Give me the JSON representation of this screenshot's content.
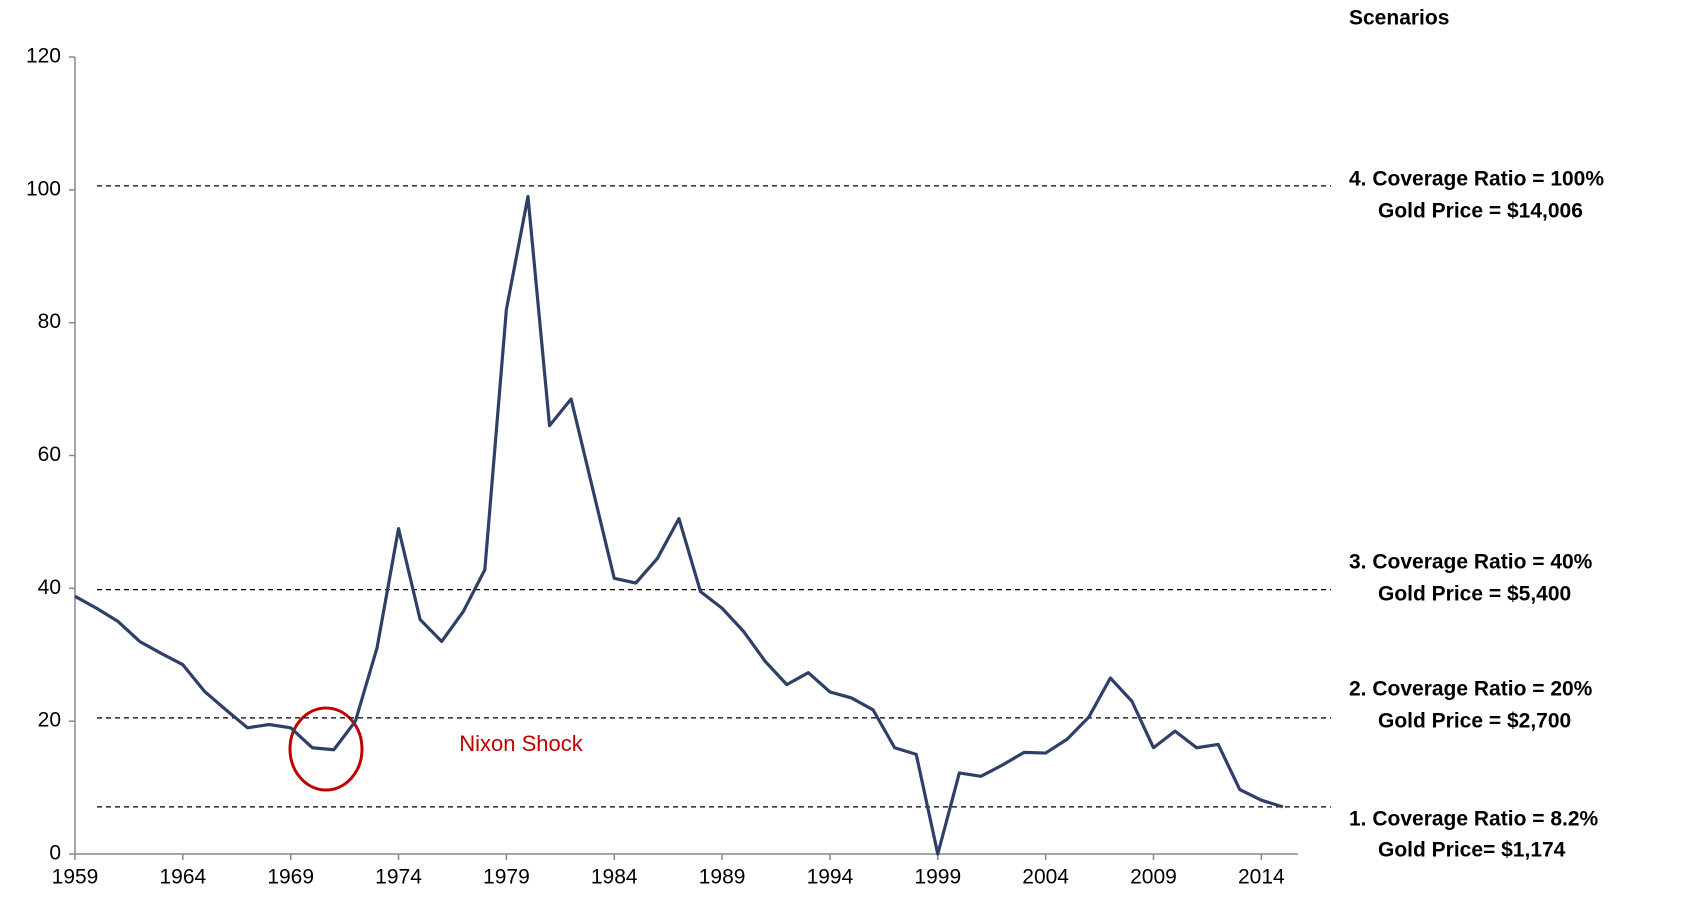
{
  "chart_data": {
    "type": "line",
    "header": "Scenarios",
    "x": [
      1959,
      1960,
      1961,
      1962,
      1963,
      1964,
      1965,
      1966,
      1967,
      1968,
      1969,
      1970,
      1971,
      1972,
      1973,
      1974,
      1975,
      1976,
      1977,
      1978,
      1979,
      1980,
      1981,
      1982,
      1983,
      1984,
      1985,
      1986,
      1987,
      1988,
      1989,
      1990,
      1991,
      1992,
      1993,
      1994,
      1995,
      1996,
      1997,
      1998,
      1999,
      2000,
      2001,
      2002,
      2003,
      2004,
      2005,
      2006,
      2007,
      2008,
      2009,
      2010,
      2011,
      2012,
      2013,
      2014,
      2015
    ],
    "series": [
      {
        "color": "#2e4068",
        "values": [
          38.8,
          37,
          35,
          32,
          30.2,
          28.5,
          24.5,
          21.7,
          19,
          19.5,
          19,
          16,
          15.7,
          20,
          31,
          49,
          35.3,
          32,
          36.5,
          42.8,
          82,
          99,
          64.5,
          68.5,
          55,
          41.5,
          40.8,
          44.5,
          50.5,
          39.5,
          37,
          33.5,
          29,
          25.5,
          27.3,
          24.4,
          23.5,
          21.7,
          16,
          15,
          0,
          12.2,
          11.7,
          13.4,
          15.3,
          15.2,
          17.3,
          20.6,
          26.5,
          23,
          16,
          18.5,
          16,
          16.5,
          9.7,
          8.1,
          7.1
        ]
      }
    ],
    "xlim": [
      1959,
      2015.7
    ],
    "xticks": [
      1959,
      1964,
      1969,
      1974,
      1979,
      1984,
      1989,
      1994,
      1999,
      2004,
      2009,
      2014
    ],
    "ylim": [
      0,
      120
    ],
    "yticks": [
      0,
      20,
      40,
      60,
      80,
      100,
      120
    ],
    "reference_lines": [
      {
        "value": 7.1,
        "label": [
          "1. Coverage Ratio = 8.2%",
          "Gold Price= $1,174"
        ]
      },
      {
        "value": 20.5,
        "label": [
          "2. Coverage Ratio = 20%",
          "Gold Price = $2,700"
        ]
      },
      {
        "value": 39.8,
        "label": [
          "3. Coverage Ratio = 40%",
          "Gold Price = $5,400"
        ]
      },
      {
        "value": 100.6,
        "label": [
          "4. Coverage Ratio = 100%",
          "Gold Price = $14,006"
        ]
      }
    ],
    "annotation": "Nixon Shock"
  }
}
